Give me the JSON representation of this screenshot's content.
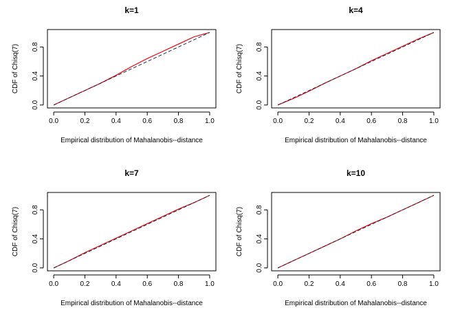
{
  "figure": {
    "xlabel": "Empirical distribution of Mahalanobis--distance",
    "ylabel": "CDF of Chisq(7)"
  },
  "colors": {
    "empirical_line": "#e8141c",
    "reference_line": "#1f2a44",
    "axes": "#000000",
    "background": "#ffffff"
  },
  "chart_data": [
    {
      "type": "line",
      "title": "k=1",
      "xlabel": "Empirical distribution of Mahalanobis--distance",
      "ylabel": "CDF of Chisq(7)",
      "xlim": [
        0,
        1
      ],
      "ylim": [
        0,
        1
      ],
      "xticks": [
        "0.0",
        "0.2",
        "0.4",
        "0.6",
        "0.8",
        "1.0"
      ],
      "yticks": [
        "0.0",
        "0.4",
        "0.8"
      ],
      "grid": false,
      "series": [
        {
          "style": "solid-red",
          "x": [
            0,
            0.1,
            0.2,
            0.3,
            0.4,
            0.5,
            0.6,
            0.7,
            0.8,
            0.9,
            1.0
          ],
          "y": [
            0,
            0.1,
            0.2,
            0.3,
            0.41,
            0.53,
            0.64,
            0.74,
            0.84,
            0.94,
            1.0
          ]
        },
        {
          "style": "dashed-reference",
          "x": [
            0,
            1
          ],
          "y": [
            0,
            1
          ]
        }
      ]
    },
    {
      "type": "line",
      "title": "k=4",
      "xlabel": "Empirical distribution of Mahalanobis--distance",
      "ylabel": "CDF of Chisq(7)",
      "xlim": [
        0,
        1
      ],
      "ylim": [
        0,
        1
      ],
      "xticks": [
        "0.0",
        "0.2",
        "0.4",
        "0.6",
        "0.8",
        "1.0"
      ],
      "yticks": [
        "0.0",
        "0.4",
        "0.8"
      ],
      "grid": false,
      "series": [
        {
          "style": "solid-red",
          "x": [
            0,
            0.1,
            0.2,
            0.3,
            0.4,
            0.5,
            0.6,
            0.7,
            0.8,
            0.9,
            1.0
          ],
          "y": [
            0,
            0.09,
            0.19,
            0.3,
            0.4,
            0.5,
            0.61,
            0.71,
            0.81,
            0.91,
            1.0
          ]
        },
        {
          "style": "dashed-reference",
          "x": [
            0,
            1
          ],
          "y": [
            0,
            1
          ]
        }
      ]
    },
    {
      "type": "line",
      "title": "k=7",
      "xlabel": "Empirical distribution of Mahalanobis--distance",
      "ylabel": "CDF of Chisq(7)",
      "xlim": [
        0,
        1
      ],
      "ylim": [
        0,
        1
      ],
      "xticks": [
        "0.0",
        "0.2",
        "0.4",
        "0.6",
        "0.8",
        "1.0"
      ],
      "yticks": [
        "0.0",
        "0.4",
        "0.8"
      ],
      "grid": false,
      "series": [
        {
          "style": "solid-red",
          "x": [
            0,
            0.1,
            0.2,
            0.3,
            0.4,
            0.5,
            0.6,
            0.7,
            0.8,
            0.9,
            1.0
          ],
          "y": [
            0,
            0.1,
            0.21,
            0.31,
            0.41,
            0.51,
            0.61,
            0.71,
            0.81,
            0.9,
            1.0
          ]
        },
        {
          "style": "dashed-reference",
          "x": [
            0,
            1
          ],
          "y": [
            0,
            1
          ]
        }
      ]
    },
    {
      "type": "line",
      "title": "k=10",
      "xlabel": "Empirical distribution of Mahalanobis--distance",
      "ylabel": "CDF of Chisq(7)",
      "xlim": [
        0,
        1
      ],
      "ylim": [
        0,
        1
      ],
      "xticks": [
        "0.0",
        "0.2",
        "0.4",
        "0.6",
        "0.8",
        "1.0"
      ],
      "yticks": [
        "0.0",
        "0.4",
        "0.8"
      ],
      "grid": false,
      "series": [
        {
          "style": "solid-red",
          "x": [
            0,
            0.1,
            0.2,
            0.3,
            0.4,
            0.5,
            0.6,
            0.7,
            0.8,
            0.9,
            1.0
          ],
          "y": [
            0,
            0.1,
            0.2,
            0.3,
            0.4,
            0.51,
            0.61,
            0.7,
            0.8,
            0.9,
            1.0
          ]
        },
        {
          "style": "dashed-reference",
          "x": [
            0,
            1
          ],
          "y": [
            0,
            1
          ]
        }
      ]
    }
  ]
}
